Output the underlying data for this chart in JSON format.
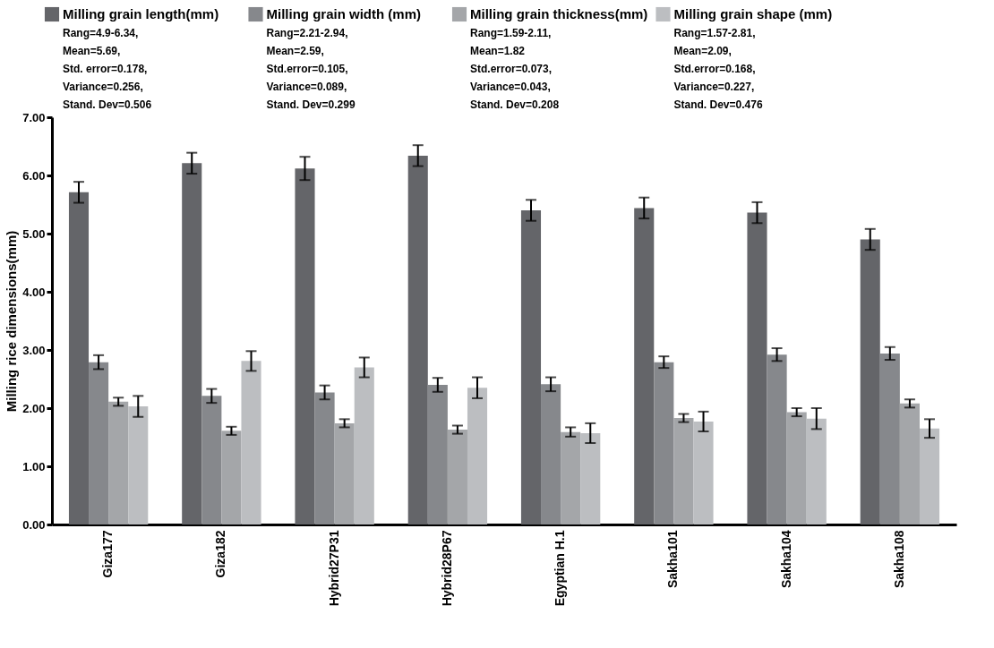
{
  "chart_data": {
    "type": "bar",
    "ylabel": "Milling rice dimensions(mm)",
    "categories": [
      "Giza177",
      "Giza182",
      "Hybrid27P31",
      "Hybrid28P67",
      "Egyptian H.1",
      "Sakha101",
      "Sakha104",
      "Sakha108"
    ],
    "series": [
      {
        "name": "Milling grain length(mm)",
        "color": "#646569",
        "values": [
          5.71,
          6.21,
          6.12,
          6.34,
          5.4,
          5.44,
          5.36,
          4.9
        ],
        "errors": [
          0.18,
          0.18,
          0.2,
          0.18,
          0.18,
          0.18,
          0.18,
          0.18
        ]
      },
      {
        "name": "Milling grain width (mm)",
        "color": "#86888c",
        "values": [
          2.79,
          2.21,
          2.27,
          2.4,
          2.41,
          2.79,
          2.92,
          2.94
        ],
        "errors": [
          0.12,
          0.12,
          0.12,
          0.12,
          0.12,
          0.1,
          0.11,
          0.11
        ]
      },
      {
        "name": "Milling grain thickness(mm)",
        "color": "#a4a6a9",
        "values": [
          2.11,
          1.61,
          1.74,
          1.63,
          1.59,
          1.83,
          1.93,
          2.08
        ],
        "errors": [
          0.07,
          0.07,
          0.07,
          0.07,
          0.08,
          0.07,
          0.07,
          0.07
        ]
      },
      {
        "name": "Milling grain shape (mm)",
        "color": "#bcbec1",
        "values": [
          2.03,
          2.81,
          2.7,
          2.35,
          1.57,
          1.77,
          1.82,
          1.65
        ],
        "errors": [
          0.18,
          0.17,
          0.17,
          0.18,
          0.17,
          0.17,
          0.18,
          0.16
        ]
      }
    ],
    "ylim": [
      0,
      7
    ],
    "yticks": [
      {
        "value": 0,
        "label": "0.00"
      },
      {
        "value": 1,
        "label": "1.00"
      },
      {
        "value": 2,
        "label": "2.00"
      },
      {
        "value": 3,
        "label": "3.00"
      },
      {
        "value": 4,
        "label": "4.00"
      },
      {
        "value": 5,
        "label": "5.00"
      },
      {
        "value": 6,
        "label": "6.00"
      },
      {
        "value": 7,
        "label": "7.00"
      }
    ],
    "annotations": [
      "Rang=4.9-6.34,\nMean=5.69,\nStd. error=0.178,\nVariance=0.256,\nStand. Dev=0.506",
      "Rang=2.21-2.94,\nMean=2.59,\nStd.error=0.105,\nVariance=0.089,\nStand. Dev=0.299",
      "Rang=1.59-2.11,\nMean=1.82\nStd.error=0.073,\nVariance=0.043,\nStand. Dev=0.208",
      "Rang=1.57-2.81,\nMean=2.09,\nStd.error=0.168,\nVariance=0.227,\nStand. Dev=0.476"
    ],
    "legend": "top",
    "grid": false
  }
}
